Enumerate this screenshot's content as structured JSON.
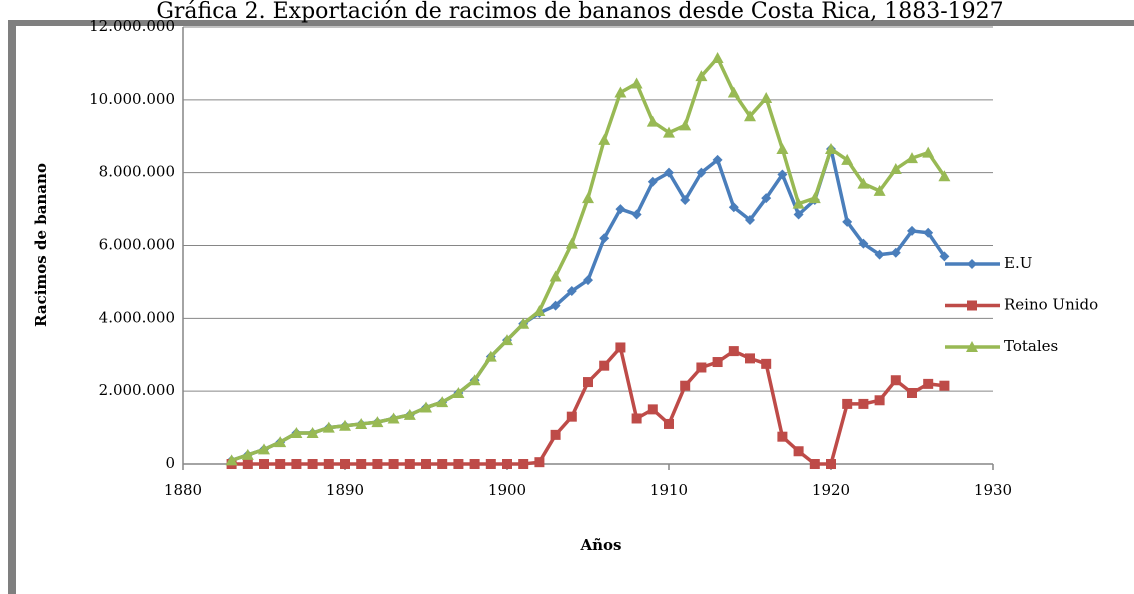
{
  "chart_data": {
    "type": "line",
    "title": "Gráfica 2. Exportación de racimos de bananos desde Costa Rica, 1883-1927",
    "x_label": "Años",
    "y_label": "Racimos de banano",
    "x": [
      1883,
      1884,
      1885,
      1886,
      1887,
      1888,
      1889,
      1890,
      1891,
      1892,
      1893,
      1894,
      1895,
      1896,
      1897,
      1898,
      1899,
      1900,
      1901,
      1902,
      1903,
      1904,
      1905,
      1906,
      1907,
      1908,
      1909,
      1910,
      1911,
      1912,
      1913,
      1914,
      1915,
      1916,
      1917,
      1918,
      1919,
      1920,
      1921,
      1922,
      1923,
      1924,
      1925,
      1926,
      1927
    ],
    "series": [
      {
        "name": "E.U",
        "color": "#4a7ebb",
        "marker": "diamond",
        "values": [
          100000,
          250000,
          400000,
          600000,
          850000,
          850000,
          1000000,
          1050000,
          1100000,
          1150000,
          1250000,
          1350000,
          1550000,
          1700000,
          1950000,
          2300000,
          2950000,
          3400000,
          3850000,
          4150000,
          4350000,
          4750000,
          5050000,
          6200000,
          7000000,
          6850000,
          7750000,
          8000000,
          7250000,
          8000000,
          8350000,
          7050000,
          6700000,
          7300000,
          7950000,
          6850000,
          7250000,
          8650000,
          6650000,
          6050000,
          5750000,
          5800000,
          6400000,
          6350000,
          5700000
        ]
      },
      {
        "name": "Reino Unido",
        "color": "#be4b48",
        "marker": "square",
        "values": [
          0,
          0,
          0,
          0,
          0,
          0,
          0,
          0,
          0,
          0,
          0,
          0,
          0,
          0,
          0,
          0,
          0,
          0,
          0,
          50000,
          800000,
          1300000,
          2250000,
          2700000,
          3200000,
          1250000,
          1500000,
          1100000,
          2150000,
          2650000,
          2800000,
          3100000,
          2900000,
          2750000,
          750000,
          350000,
          0,
          0,
          1650000,
          1650000,
          1750000,
          2300000,
          1950000,
          2200000,
          2150000
        ]
      },
      {
        "name": "Totales",
        "color": "#98b954",
        "marker": "triangle",
        "values": [
          100000,
          250000,
          400000,
          600000,
          850000,
          850000,
          1000000,
          1050000,
          1100000,
          1150000,
          1250000,
          1350000,
          1550000,
          1700000,
          1950000,
          2300000,
          2950000,
          3400000,
          3850000,
          4200000,
          5150000,
          6050000,
          7300000,
          8900000,
          10200000,
          10450000,
          9400000,
          9100000,
          9300000,
          10650000,
          11150000,
          10200000,
          9550000,
          10050000,
          8650000,
          7150000,
          7300000,
          8650000,
          8350000,
          7700000,
          7500000,
          8100000,
          8400000,
          8550000,
          7900000
        ]
      }
    ],
    "xlim": [
      1880,
      1930
    ],
    "xticks": [
      1880,
      1890,
      1900,
      1910,
      1920,
      1930
    ],
    "ylim": [
      0,
      12000000
    ],
    "yticks": [
      0,
      {
        "value": 2000000,
        "label": "2.000.000"
      },
      {
        "value": 4000000,
        "label": "4.000.000"
      },
      {
        "value": 6000000,
        "label": "6.000.000"
      },
      {
        "value": 8000000,
        "label": "8.000.000"
      },
      {
        "value": 10000000,
        "label": "10.000.000"
      },
      {
        "value": 12000000,
        "label": "12.000.000"
      }
    ],
    "grid": true,
    "legend": "right"
  }
}
